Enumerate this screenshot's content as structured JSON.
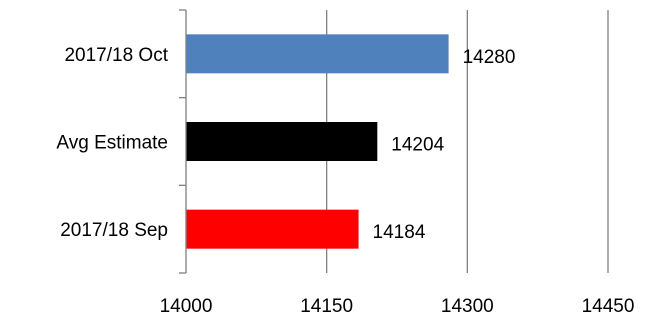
{
  "chart_data": {
    "type": "bar",
    "orientation": "horizontal",
    "title": "",
    "xlabel": "",
    "ylabel": "",
    "categories": [
      "2017/18 Oct",
      "Avg Estimate",
      "2017/18 Sep"
    ],
    "values": [
      14280,
      14204,
      14184
    ],
    "data_labels": [
      "14280",
      "14204",
      "14184"
    ],
    "colors": [
      "#4f81bd",
      "#000000",
      "#ff0000"
    ],
    "xlim": [
      14000,
      14450
    ],
    "xticks": [
      14000,
      14150,
      14300,
      14450
    ],
    "xtick_labels": [
      "14000",
      "14150",
      "14300",
      "14450"
    ],
    "grid": "vertical",
    "legend": "none"
  }
}
